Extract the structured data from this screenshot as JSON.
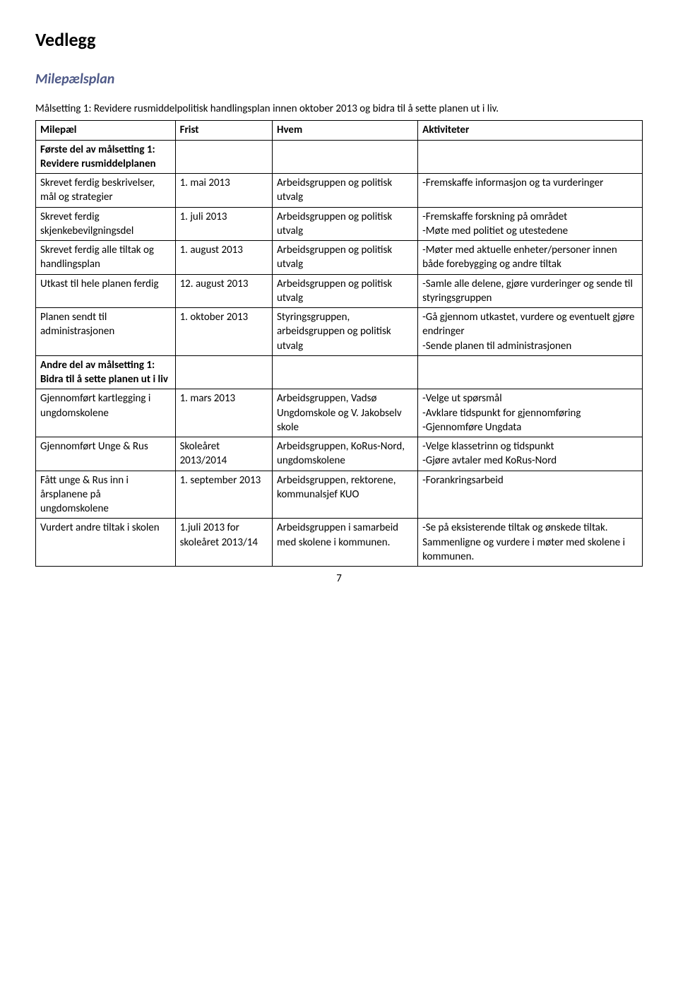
{
  "page": {
    "title": "Vedlegg",
    "subtitle": "Milepælsplan",
    "intro": "Målsetting 1: Revidere rusmiddelpolitisk handlingsplan innen oktober 2013 og bidra til å sette planen ut i liv.",
    "pageNumber": "7"
  },
  "table": {
    "headers": {
      "c1": "Milepæl",
      "c2": "Frist",
      "c3": "Hvem",
      "c4": "Aktiviteter"
    },
    "section1": "Første del av målsetting 1: Revidere rusmiddelplanen",
    "rows1": [
      {
        "c1": "Skrevet ferdig beskrivelser, mål og strategier",
        "c2": "1. mai 2013",
        "c3": "Arbeidsgruppen og politisk utvalg",
        "c4": "-Fremskaffe informasjon og ta vurderinger"
      },
      {
        "c1": "Skrevet ferdig skjenkebevilgningsdel",
        "c2": "1. juli 2013",
        "c3": "Arbeidsgruppen og politisk utvalg",
        "c4": "-Fremskaffe forskning på området\n-Møte med politiet og utestedene"
      },
      {
        "c1": "Skrevet ferdig alle tiltak og handlingsplan",
        "c2": "1. august 2013",
        "c3": "Arbeidsgruppen og politisk utvalg",
        "c4": "-Møter med aktuelle enheter/personer innen både forebygging og andre tiltak"
      },
      {
        "c1": "Utkast til hele planen ferdig",
        "c2": "12. august 2013",
        "c3": "Arbeidsgruppen og politisk utvalg",
        "c4": "-Samle alle delene, gjøre vurderinger og sende til styringsgruppen"
      },
      {
        "c1": "Planen sendt til administrasjonen",
        "c2": "1. oktober 2013",
        "c3": "Styringsgruppen, arbeidsgruppen og politisk utvalg",
        "c4": "-Gå gjennom utkastet, vurdere og eventuelt gjøre endringer\n-Sende planen til administrasjonen"
      }
    ],
    "section2": "Andre del av målsetting 1: Bidra til å sette planen ut i liv",
    "rows2": [
      {
        "c1": "Gjennomført kartlegging i ungdomskolene",
        "c2": "1. mars 2013",
        "c3": "Arbeidsgruppen, Vadsø Ungdomskole og V. Jakobselv skole",
        "c4": "-Velge ut spørsmål\n-Avklare tidspunkt for gjennomføring\n-Gjennomføre Ungdata"
      },
      {
        "c1": "Gjennomført Unge & Rus",
        "c2": "Skoleåret 2013/2014",
        "c3": "Arbeidsgruppen, KoRus-Nord, ungdomskolene",
        "c4": "-Velge klassetrinn og tidspunkt\n-Gjøre avtaler med KoRus-Nord"
      },
      {
        "c1": "Fått unge & Rus inn i årsplanene på ungdomskolene",
        "c2": "1. september 2013",
        "c3": "Arbeidsgruppen, rektorene, kommunalsjef KUO",
        "c4": "-Forankringsarbeid"
      },
      {
        "c1": "Vurdert andre tiltak i skolen",
        "c2": "1.juli 2013 for skoleåret 2013/14",
        "c3": "Arbeidsgruppen i samarbeid med skolene i kommunen.",
        "c4": "-Se på eksisterende tiltak og ønskede tiltak. Sammenligne og vurdere i møter med skolene i kommunen."
      }
    ]
  }
}
